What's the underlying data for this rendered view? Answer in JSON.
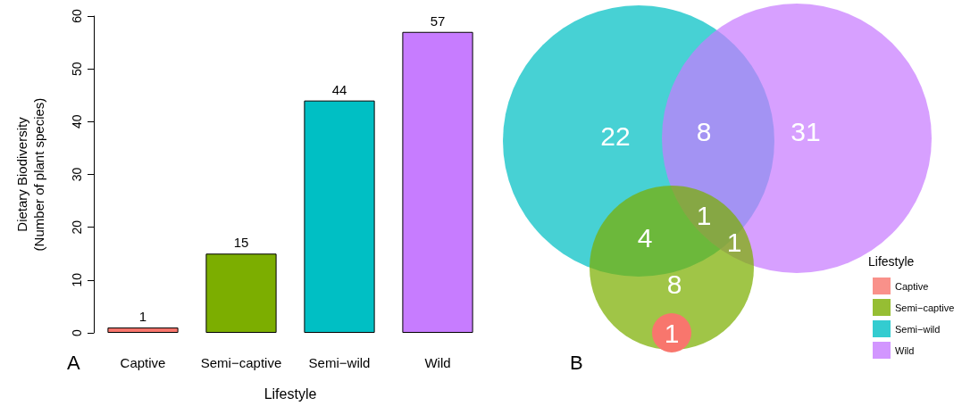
{
  "chart_data": [
    {
      "type": "bar",
      "categories": [
        "Captive",
        "Semi−captive",
        "Semi−wild",
        "Wild"
      ],
      "values": [
        1,
        15,
        44,
        57
      ],
      "colors": [
        "#f8766d",
        "#7cae00",
        "#00bfc4",
        "#c77cff"
      ],
      "ylim": [
        0,
        60
      ],
      "yticks": [
        0,
        10,
        20,
        30,
        40,
        50,
        60
      ],
      "data_labels": true,
      "grid": false,
      "xlabel": "Lifestyle",
      "ylabel": "Dietary Biodiversity\n(Number of plant species)",
      "annotations": [
        "A"
      ]
    },
    {
      "type": "other",
      "annotations": [
        "22",
        "8",
        "31",
        "4",
        "1",
        "1",
        "8",
        "1",
        "B"
      ]
    },
    {
      "type": "other",
      "legend_title": "Lifestyle",
      "categories": [
        "Captive",
        "Semi−captive",
        "Semi−wild",
        "Wild"
      ],
      "colors": [
        "#f8766d",
        "#7cae00",
        "#00bfc4",
        "#c77cff"
      ]
    }
  ]
}
